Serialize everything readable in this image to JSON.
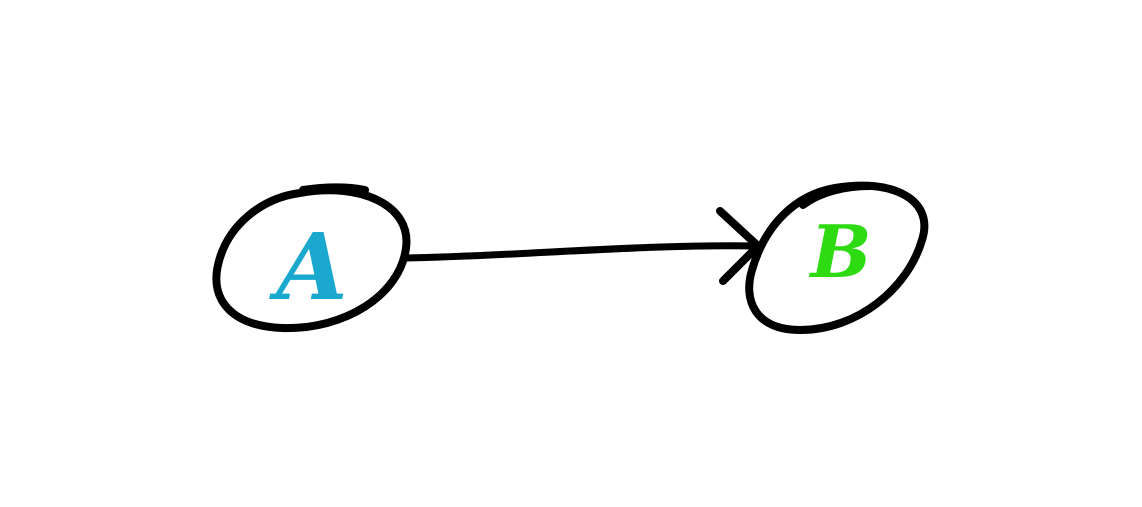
{
  "diagram": {
    "nodes": [
      {
        "id": "A",
        "label": "A",
        "label_color": "#1BA8CF"
      },
      {
        "id": "B",
        "label": "B",
        "label_color": "#2EDB12"
      }
    ],
    "edges": [
      {
        "from": "A",
        "to": "B",
        "directed": true
      }
    ],
    "stroke_color": "#000000",
    "background": "#FFFFFF"
  }
}
